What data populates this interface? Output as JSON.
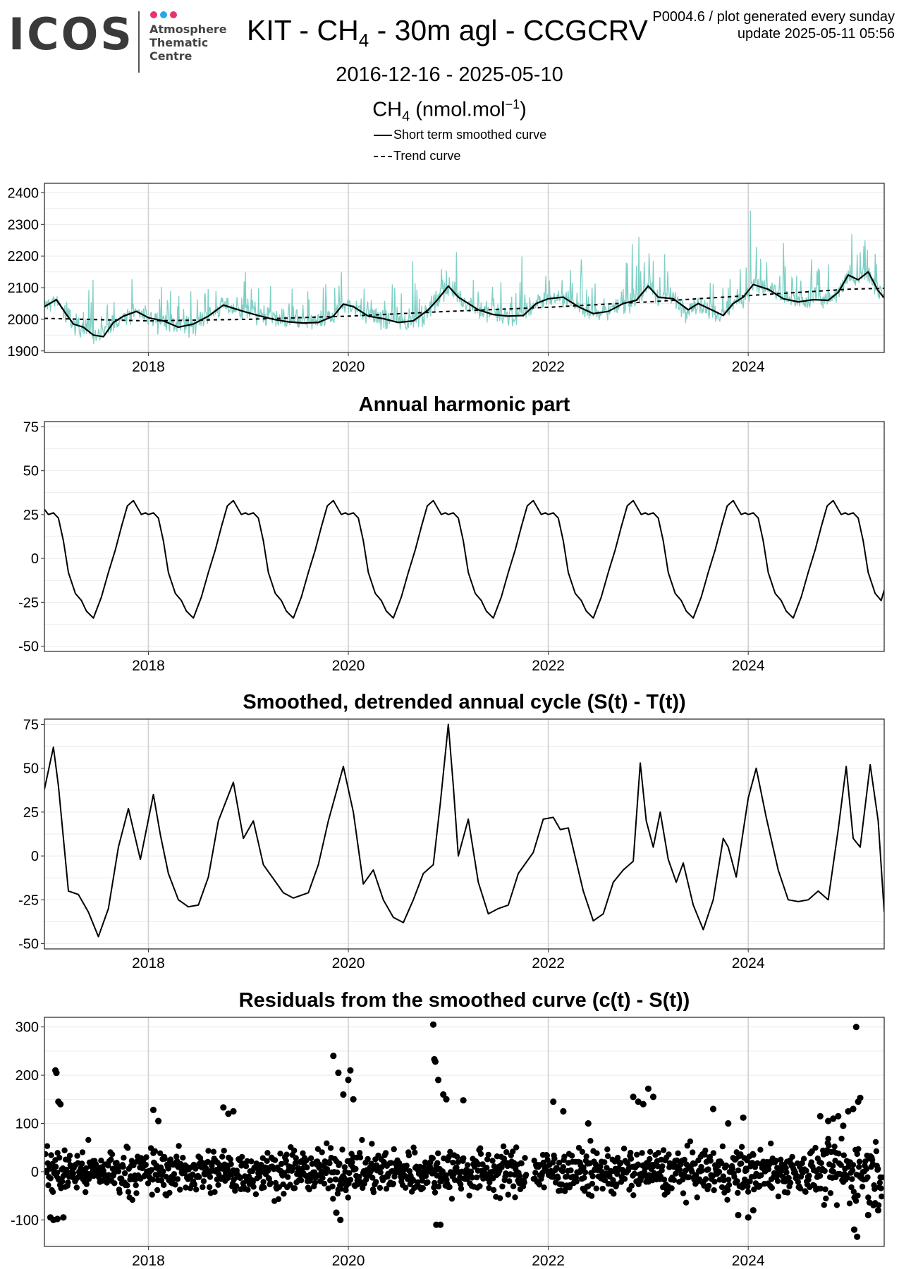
{
  "header": {
    "logo": {
      "mark": "ICOS",
      "lines": [
        "Atmosphere",
        "Thematic",
        "Centre"
      ],
      "dot_colors": [
        "#e8336e",
        "#2aa6e8",
        "#e8336e"
      ]
    },
    "title": {
      "main": "KIT - CH",
      "sub": "4",
      "rest": " - 30m agl - CCGCRV"
    },
    "info_line1": "P0004.6 / plot generated every sunday",
    "info_line2": "update  2025-05-11 05:56",
    "date_range": "2016-12-16 - 2025-05-10",
    "units": {
      "a": "CH",
      "sub": "4",
      "b": " (nmol.mol",
      "sup": "−1",
      "c": ")"
    },
    "legend": [
      {
        "label": "Short term smoothed curve",
        "style": "solid"
      },
      {
        "label": "Trend curve",
        "style": "dashed"
      }
    ]
  },
  "colors": {
    "raw_series": "#7fd0c5",
    "curve": "#000000",
    "grid": "#ebebeb",
    "year_grid": "#d0d0d0",
    "panel_border": "#333333"
  },
  "chart_data": [
    {
      "type": "line",
      "title": "",
      "xlim": [
        2016.96,
        2025.36
      ],
      "ylim": [
        1895,
        2430
      ],
      "yticks": [
        1900,
        2000,
        2100,
        2200,
        2300,
        2400
      ],
      "xticks": [
        2018,
        2020,
        2022,
        2024
      ],
      "xtick_labels": [
        "2018",
        "2020",
        "2022",
        "2024"
      ],
      "grid": true,
      "series": [
        {
          "name": "Short term smoothed curve",
          "x": [
            2016.96,
            2017.08,
            2017.17,
            2017.25,
            2017.35,
            2017.45,
            2017.55,
            2017.65,
            2017.75,
            2017.88,
            2018.0,
            2018.15,
            2018.3,
            2018.45,
            2018.6,
            2018.75,
            2018.85,
            2018.95,
            2019.1,
            2019.25,
            2019.4,
            2019.55,
            2019.7,
            2019.85,
            2019.95,
            2020.05,
            2020.2,
            2020.35,
            2020.5,
            2020.65,
            2020.8,
            2020.9,
            2021.0,
            2021.1,
            2021.2,
            2021.3,
            2021.45,
            2021.6,
            2021.75,
            2021.88,
            2022.0,
            2022.15,
            2022.3,
            2022.45,
            2022.6,
            2022.75,
            2022.88,
            2023.0,
            2023.1,
            2023.25,
            2023.4,
            2023.5,
            2023.6,
            2023.75,
            2023.85,
            2023.95,
            2024.05,
            2024.2,
            2024.35,
            2024.5,
            2024.65,
            2024.8,
            2024.9,
            2025.0,
            2025.1,
            2025.2,
            2025.3,
            2025.36
          ],
          "y": [
            2040,
            2062,
            2020,
            1985,
            1975,
            1950,
            1945,
            1990,
            2010,
            2025,
            2005,
            1995,
            1975,
            1985,
            2010,
            2045,
            2035,
            2025,
            2012,
            2000,
            1992,
            1988,
            1990,
            2010,
            2048,
            2040,
            2010,
            2002,
            1990,
            1995,
            2030,
            2065,
            2105,
            2070,
            2050,
            2030,
            2015,
            2010,
            2012,
            2050,
            2065,
            2070,
            2040,
            2018,
            2025,
            2050,
            2060,
            2105,
            2070,
            2065,
            2030,
            2050,
            2035,
            2012,
            2050,
            2070,
            2110,
            2095,
            2065,
            2055,
            2062,
            2060,
            2085,
            2140,
            2125,
            2150,
            2090,
            2068
          ]
        },
        {
          "name": "Trend curve",
          "x": [
            2016.96,
            2018.0,
            2019.0,
            2020.0,
            2021.0,
            2022.0,
            2023.0,
            2024.0,
            2025.0,
            2025.36
          ],
          "y": [
            2003,
            1995,
            2000,
            2010,
            2025,
            2038,
            2055,
            2075,
            2095,
            2098
          ]
        }
      ]
    },
    {
      "type": "line",
      "title": "Annual harmonic part",
      "xlim": [
        2016.96,
        2025.36
      ],
      "ylim": [
        -53,
        78
      ],
      "yticks": [
        -50,
        -25,
        0,
        25,
        50,
        75
      ],
      "xticks": [
        2018,
        2020,
        2022,
        2024
      ],
      "xtick_labels": [
        "2018",
        "2020",
        "2022",
        "2024"
      ],
      "grid": true,
      "series": [
        {
          "name": "",
          "x": [],
          "y": [],
          "pattern_x_offset": [
            0.0,
            0.05,
            0.1,
            0.15,
            0.2,
            0.27,
            0.33,
            0.38,
            0.45,
            0.53,
            0.6,
            0.67,
            0.73,
            0.79,
            0.85,
            0.89,
            0.93,
            0.97
          ],
          "pattern_y": [
            25,
            26,
            23,
            10,
            -8,
            -20,
            -24,
            -30,
            -34,
            -22,
            -8,
            5,
            18,
            30,
            33,
            29,
            25,
            26
          ],
          "period_years": 1,
          "first_cycle_start": 2017.0,
          "start_y": 28,
          "end_y": -18
        }
      ]
    },
    {
      "type": "line",
      "title": "Smoothed, detrended annual cycle (S(t) - T(t))",
      "xlim": [
        2016.96,
        2025.36
      ],
      "ylim": [
        -53,
        78
      ],
      "yticks": [
        -50,
        -25,
        0,
        25,
        50,
        75
      ],
      "xticks": [
        2018,
        2020,
        2022,
        2024
      ],
      "xtick_labels": [
        "2018",
        "2020",
        "2022",
        "2024"
      ],
      "grid": true,
      "series": [
        {
          "name": "",
          "x": [
            2016.96,
            2017.05,
            2017.1,
            2017.2,
            2017.3,
            2017.4,
            2017.5,
            2017.6,
            2017.7,
            2017.8,
            2017.92,
            2018.05,
            2018.12,
            2018.2,
            2018.3,
            2018.4,
            2018.5,
            2018.6,
            2018.7,
            2018.85,
            2018.95,
            2019.05,
            2019.15,
            2019.25,
            2019.35,
            2019.45,
            2019.6,
            2019.7,
            2019.8,
            2019.95,
            2020.05,
            2020.15,
            2020.25,
            2020.35,
            2020.45,
            2020.55,
            2020.65,
            2020.75,
            2020.85,
            2020.92,
            2021.0,
            2021.05,
            2021.1,
            2021.2,
            2021.3,
            2021.4,
            2021.5,
            2021.6,
            2021.7,
            2021.85,
            2021.95,
            2022.05,
            2022.12,
            2022.2,
            2022.35,
            2022.45,
            2022.55,
            2022.65,
            2022.75,
            2022.85,
            2022.92,
            2022.98,
            2023.05,
            2023.12,
            2023.2,
            2023.28,
            2023.35,
            2023.45,
            2023.55,
            2023.65,
            2023.75,
            2023.8,
            2023.88,
            2024.0,
            2024.08,
            2024.18,
            2024.3,
            2024.4,
            2024.5,
            2024.6,
            2024.7,
            2024.8,
            2024.9,
            2024.98,
            2025.05,
            2025.12,
            2025.22,
            2025.3,
            2025.36
          ],
          "y": [
            38,
            62,
            40,
            -20,
            -22,
            -32,
            -46,
            -30,
            5,
            27,
            -2,
            35,
            12,
            -10,
            -25,
            -29,
            -28,
            -12,
            20,
            42,
            10,
            20,
            -5,
            -13,
            -21,
            -24,
            -21,
            -5,
            20,
            51,
            25,
            -16,
            -8,
            -25,
            -35,
            -38,
            -25,
            -10,
            -5,
            30,
            75,
            40,
            0,
            21,
            -15,
            -33,
            -30,
            -28,
            -10,
            2,
            21,
            22,
            15,
            16,
            -20,
            -37,
            -33,
            -15,
            -8,
            -3,
            53,
            20,
            5,
            25,
            -2,
            -15,
            -4,
            -28,
            -42,
            -25,
            10,
            5,
            -12,
            33,
            50,
            22,
            -8,
            -25,
            -26,
            -25,
            -20,
            -25,
            15,
            51,
            10,
            5,
            52,
            20,
            -32
          ]
        }
      ]
    },
    {
      "type": "scatter",
      "title": "Residuals from the smoothed curve (c(t) - S(t))",
      "xlim": [
        2016.96,
        2025.36
      ],
      "ylim": [
        -155,
        320
      ],
      "yticks": [
        -100,
        0,
        100,
        200,
        300
      ],
      "xticks": [
        2018,
        2020,
        2022,
        2024
      ],
      "xtick_labels": [
        "2018",
        "2020",
        "2022",
        "2024"
      ],
      "grid": true,
      "series": [
        {
          "name": "",
          "outliers_x": [
            2017.07,
            2017.08,
            2017.1,
            2017.12,
            2017.02,
            2017.05,
            2017.09,
            2017.15,
            2018.05,
            2018.1,
            2018.75,
            2018.8,
            2018.85,
            2019.85,
            2019.9,
            2019.95,
            2020.0,
            2020.02,
            2020.05,
            2019.88,
            2019.92,
            2020.85,
            2020.86,
            2020.87,
            2020.9,
            2020.95,
            2020.98,
            2021.15,
            2020.88,
            2020.92,
            2022.05,
            2022.15,
            2022.4,
            2022.85,
            2022.9,
            2022.95,
            2023.0,
            2023.05,
            2023.65,
            2023.8,
            2023.9,
            2023.95,
            2024.0,
            2024.05,
            2024.72,
            2024.8,
            2024.85,
            2024.9,
            2024.95,
            2025.0,
            2025.05,
            2025.08,
            2025.1,
            2025.12,
            2025.06,
            2025.09,
            2025.2,
            2025.3
          ],
          "outliers_y": [
            210,
            205,
            145,
            140,
            -95,
            -100,
            -98,
            -95,
            128,
            105,
            133,
            120,
            125,
            240,
            205,
            160,
            190,
            210,
            150,
            -85,
            -100,
            305,
            233,
            228,
            190,
            160,
            150,
            148,
            -110,
            -110,
            145,
            125,
            100,
            155,
            145,
            140,
            172,
            155,
            130,
            100,
            -90,
            112,
            -95,
            -80,
            115,
            105,
            110,
            115,
            95,
            125,
            130,
            300,
            145,
            153,
            -120,
            -135,
            -90,
            -80
          ]
        }
      ]
    }
  ]
}
